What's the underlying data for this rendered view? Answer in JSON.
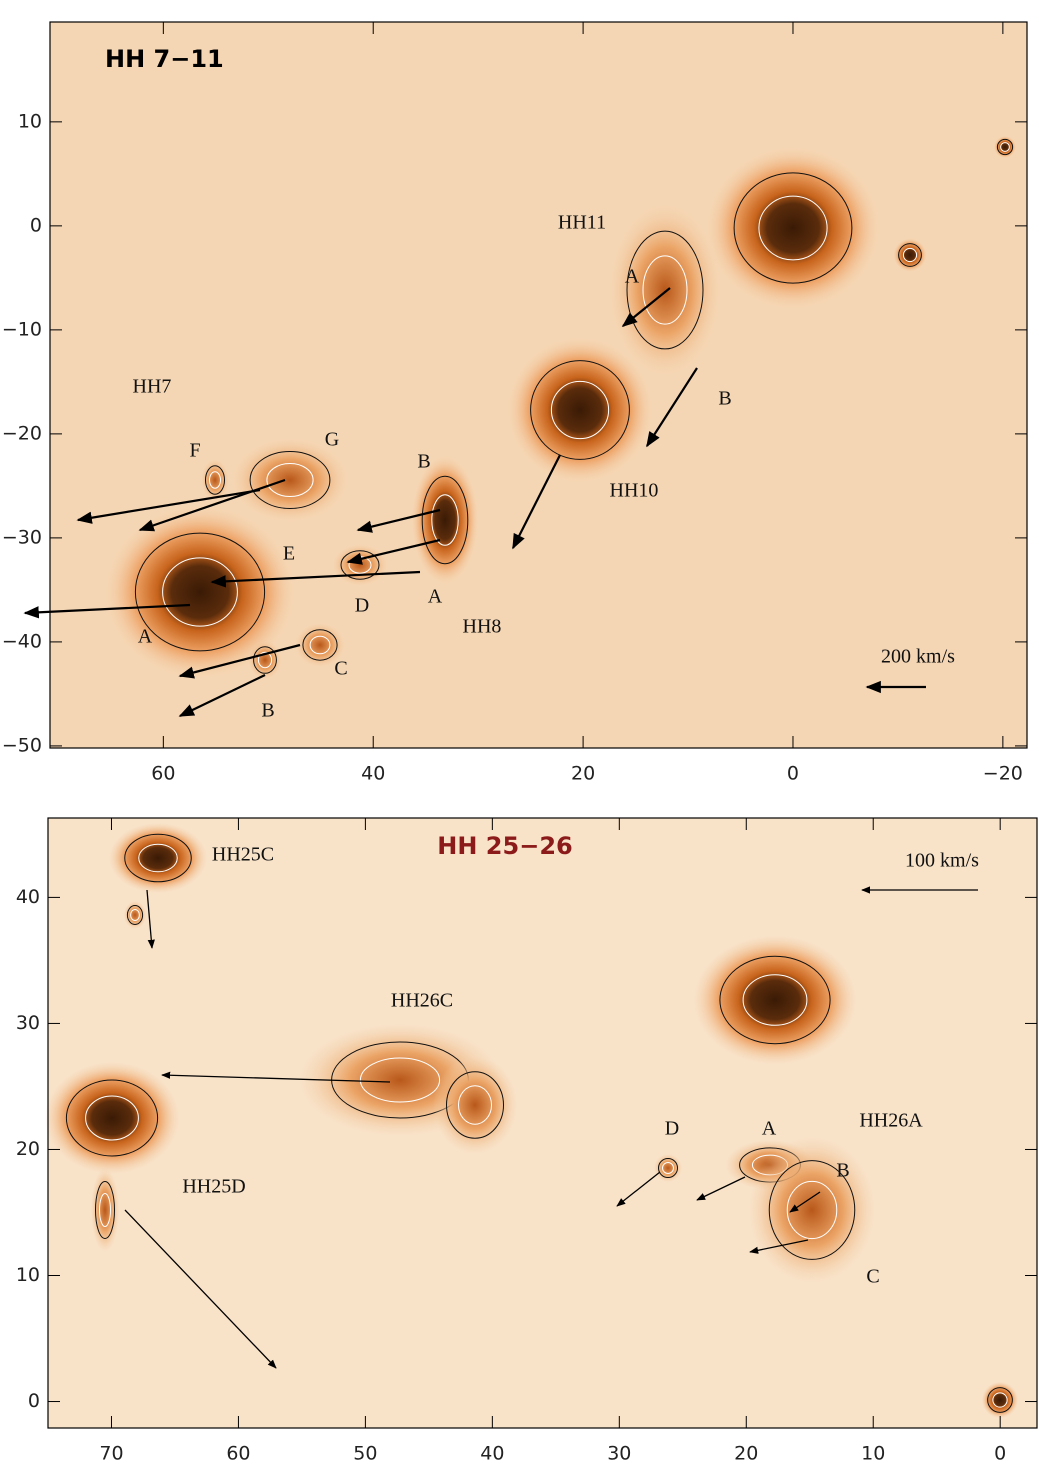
{
  "chart_data": [
    {
      "type": "image",
      "title": "HH 7−11",
      "xlim": [
        70.8,
        -22.3
      ],
      "ylim": [
        -50.2,
        19.6
      ],
      "xticks": [
        60,
        40,
        20,
        0,
        {
          "value": -20,
          "label": "−20"
        }
      ],
      "yticks": [
        10,
        0,
        {
          "value": -10,
          "label": "−10"
        },
        {
          "value": -20,
          "label": "−20"
        },
        {
          "value": -30,
          "label": "−30"
        },
        {
          "value": -40,
          "label": "−40"
        },
        {
          "value": -50,
          "label": "−50"
        }
      ],
      "annotations": [
        "HH11",
        "A",
        "B",
        "HH10",
        "HH7",
        "F",
        "G",
        "E",
        "D",
        "B",
        "A",
        "HH8",
        "A",
        "C",
        "B",
        "200 km/s"
      ],
      "title_color": "#000000"
    },
    {
      "type": "image",
      "title": "HH 25−26",
      "xlim": [
        75,
        -2.9
      ],
      "ylim": [
        -2.1,
        46.3
      ],
      "xticks": [
        70,
        60,
        50,
        40,
        30,
        20,
        10,
        0
      ],
      "yticks": [
        0,
        10,
        20,
        30,
        40
      ],
      "annotations": [
        "HH25C",
        "HH26C",
        "HH25D",
        "D",
        "A",
        "HH26A",
        "B",
        "C",
        "100 km/s"
      ],
      "title_color": "#8b1a1a"
    }
  ]
}
